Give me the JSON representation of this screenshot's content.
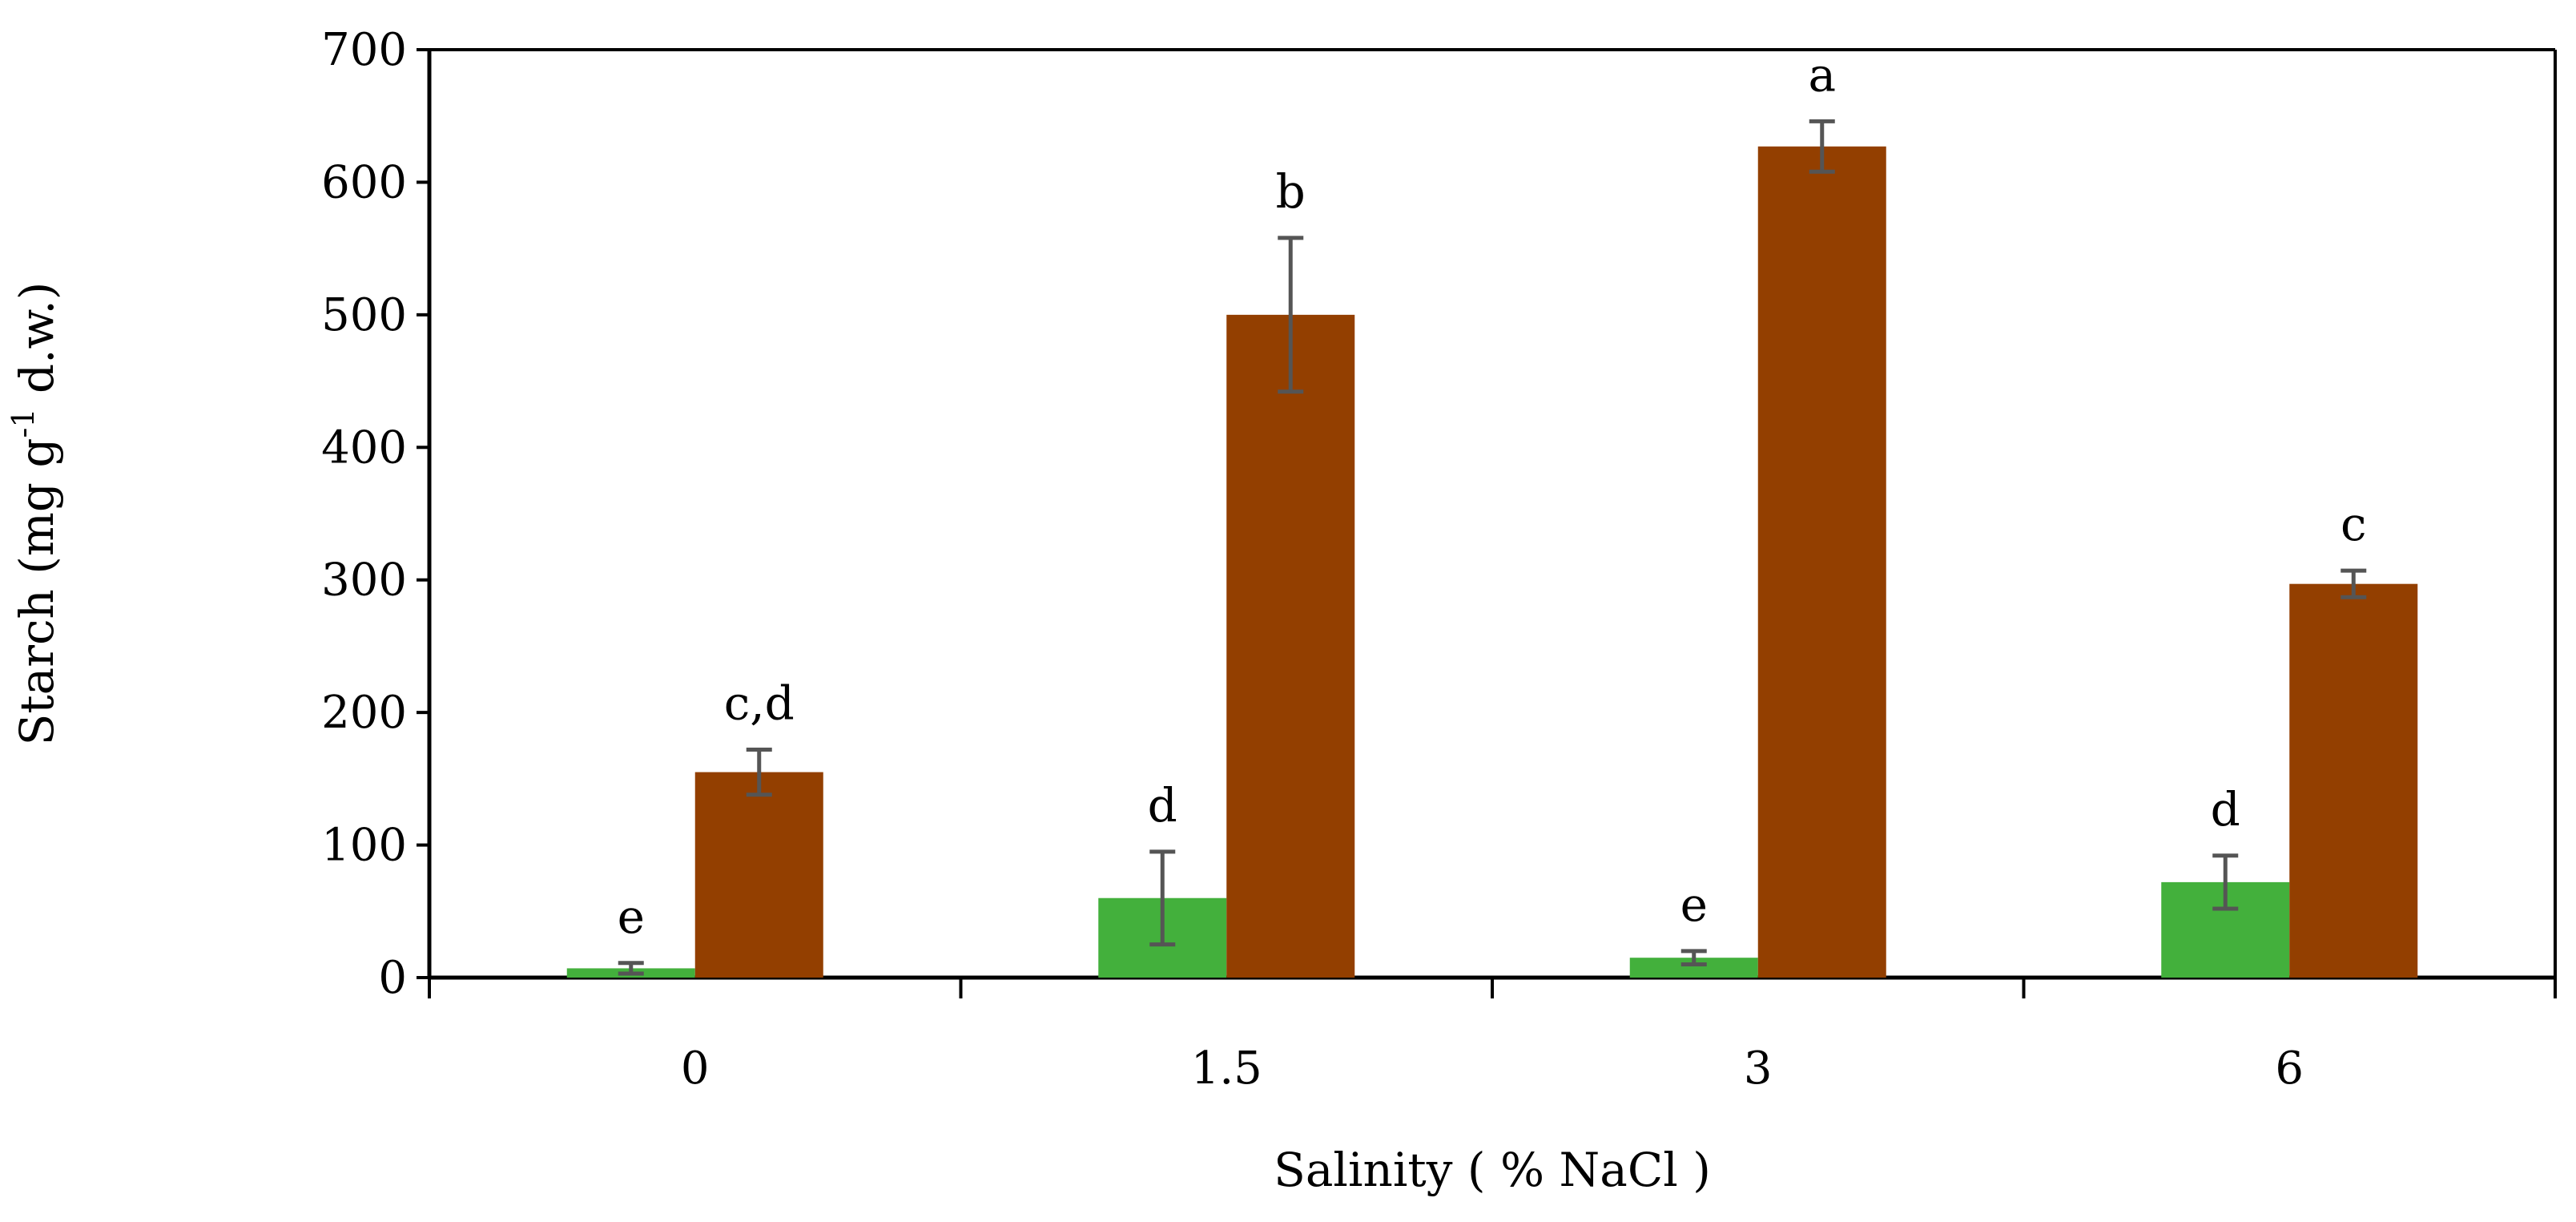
{
  "chart_data": {
    "type": "bar",
    "title": "",
    "xlabel": "Salinity ( % NaCl )",
    "ylabel": "Starch (mg g-1 d.w.)",
    "ylabel_parts": {
      "before": "Starch (mg g",
      "superscript": "-1",
      "after": " d.w.)"
    },
    "categories": [
      "0",
      "1.5",
      "3",
      "6"
    ],
    "ylim": [
      0,
      700
    ],
    "yticks": [
      "0",
      "100",
      "200",
      "300",
      "400",
      "500",
      "600",
      "700"
    ],
    "grid": false,
    "legend": "none",
    "series": [
      {
        "name": "series-green",
        "color": "#43b03c",
        "values": [
          7,
          60,
          15,
          72
        ],
        "errors": [
          4,
          35,
          5,
          20
        ],
        "significance": [
          "e",
          "d",
          "e",
          "d"
        ]
      },
      {
        "name": "series-brown",
        "color": "#933f00",
        "values": [
          155,
          500,
          627,
          297
        ],
        "errors": [
          17,
          58,
          19,
          10
        ],
        "significance": [
          "c,d",
          "b",
          "a",
          "c"
        ]
      }
    ],
    "error_bar_color": "#555555"
  }
}
